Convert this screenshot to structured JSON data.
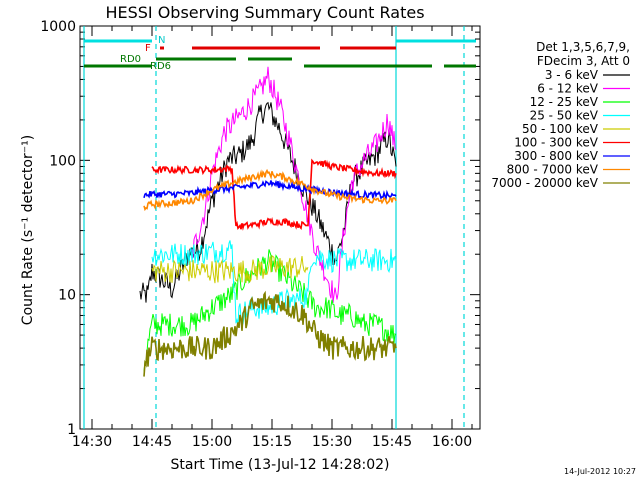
{
  "chart_data": {
    "type": "line",
    "title": "HESSI Observing Summary Count Rates",
    "xlabel": "Start Time (13-Jul-12 14:28:02)",
    "ylabel": "Count Rate (s⁻¹ detector⁻¹)",
    "footer_date": "14-Jul-2012 10:27",
    "y_scale": "log",
    "ylim": [
      1,
      1000
    ],
    "xlim_minutes": [
      14.45,
      16.12
    ],
    "xlim": [
      "14:27",
      "16:07"
    ],
    "x_ticks": [
      "14:30",
      "14:45",
      "15:00",
      "15:15",
      "15:30",
      "15:45",
      "16:00"
    ],
    "y_ticks": [
      "1",
      "10",
      "100",
      "1000"
    ],
    "legend_header": [
      "Det 1,3,5,6,7,9,",
      "FDecim 3, Att 0"
    ],
    "legend_position": "right-outside",
    "vertical_lines_cyan": [
      "14:28",
      "14:46",
      "15:46",
      "16:03"
    ],
    "flags": {
      "N_label": "N",
      "F_label": "F",
      "RD0_label": "RD0",
      "RD6_label": "RD6",
      "N_segments": [
        [
          "14:28",
          "14:45"
        ],
        [
          "15:46",
          "16:06"
        ]
      ],
      "F_segments": [
        [
          "14:47",
          "14:48"
        ],
        [
          "14:55",
          "15:27"
        ],
        [
          "15:32",
          "15:46"
        ]
      ],
      "RD0_segments": [
        [
          "14:28",
          "14:45"
        ],
        [
          "15:23",
          "15:55"
        ],
        [
          "15:58",
          "16:06"
        ]
      ],
      "RD6_segments": [
        [
          "14:46",
          "15:06"
        ],
        [
          "15:09",
          "15:20"
        ]
      ]
    },
    "series": [
      {
        "name": "3 - 6 keV",
        "color": "#000000",
        "keypoints": [
          [
            "14:42",
            10
          ],
          [
            "14:44",
            10
          ],
          [
            "14:45",
            15
          ],
          [
            "14:50",
            11
          ],
          [
            "14:54",
            20
          ],
          [
            "14:57",
            22
          ],
          [
            "15:00",
            50
          ],
          [
            "15:04",
            100
          ],
          [
            "15:07",
            110
          ],
          [
            "15:10",
            140
          ],
          [
            "15:12",
            220
          ],
          [
            "15:14",
            250
          ],
          [
            "15:17",
            170
          ],
          [
            "15:20",
            100
          ],
          [
            "15:23",
            60
          ],
          [
            "15:26",
            40
          ],
          [
            "15:29",
            25
          ],
          [
            "15:31",
            18
          ],
          [
            "15:33",
            30
          ],
          [
            "15:35",
            70
          ],
          [
            "15:38",
            90
          ],
          [
            "15:41",
            110
          ],
          [
            "15:44",
            150
          ],
          [
            "15:46",
            90
          ]
        ]
      },
      {
        "name": "6 - 12 keV",
        "color": "#ff00ff",
        "keypoints": [
          [
            "14:55",
            20
          ],
          [
            "14:58",
            40
          ],
          [
            "15:00",
            80
          ],
          [
            "15:03",
            160
          ],
          [
            "15:06",
            200
          ],
          [
            "15:09",
            250
          ],
          [
            "15:12",
            330
          ],
          [
            "15:14",
            420
          ],
          [
            "15:17",
            250
          ],
          [
            "15:20",
            120
          ],
          [
            "15:23",
            50
          ],
          [
            "15:26",
            22
          ],
          [
            "15:29",
            13
          ],
          [
            "15:31",
            9
          ],
          [
            "15:33",
            30
          ],
          [
            "15:35",
            70
          ],
          [
            "15:38",
            100
          ],
          [
            "15:41",
            130
          ],
          [
            "15:44",
            200
          ],
          [
            "15:46",
            120
          ]
        ]
      },
      {
        "name": "12 - 25 keV",
        "color": "#00ff00",
        "keypoints": [
          [
            "14:43",
            3
          ],
          [
            "14:45",
            6
          ],
          [
            "14:50",
            6
          ],
          [
            "14:55",
            6
          ],
          [
            "15:00",
            8
          ],
          [
            "15:05",
            10
          ],
          [
            "15:08",
            13
          ],
          [
            "15:12",
            16
          ],
          [
            "15:14",
            18
          ],
          [
            "15:17",
            15
          ],
          [
            "15:20",
            12
          ],
          [
            "15:23",
            10
          ],
          [
            "15:26",
            8
          ],
          [
            "15:29",
            8
          ],
          [
            "15:32",
            7
          ],
          [
            "15:35",
            7
          ],
          [
            "15:38",
            6
          ],
          [
            "15:41",
            6
          ],
          [
            "15:46",
            5
          ]
        ]
      },
      {
        "name": "25 - 50 keV",
        "color": "#00ffff",
        "keypoints": [
          [
            "14:45",
            20
          ],
          [
            "14:50",
            20
          ],
          [
            "14:55",
            20
          ],
          [
            "15:00",
            21
          ],
          [
            "15:05",
            22
          ],
          [
            "15:06",
            7
          ],
          [
            "15:10",
            8
          ],
          [
            "15:14",
            8
          ],
          [
            "15:18",
            9
          ],
          [
            "15:21",
            9
          ],
          [
            "15:24",
            10
          ],
          [
            "15:25",
            20
          ],
          [
            "15:30",
            18
          ],
          [
            "15:35",
            18
          ],
          [
            "15:41",
            18
          ],
          [
            "15:46",
            18
          ]
        ]
      },
      {
        "name": "50 - 100 keV",
        "color": "#cccc00",
        "keypoints": [
          [
            "14:45",
            15
          ],
          [
            "14:50",
            15
          ],
          [
            "14:55",
            15
          ],
          [
            "15:00",
            15
          ],
          [
            "15:05",
            15
          ],
          [
            "15:06",
            15
          ],
          [
            "15:10",
            15
          ],
          [
            "15:14",
            16
          ],
          [
            "15:18",
            16
          ],
          [
            "15:22",
            16
          ],
          [
            "15:24",
            16
          ]
        ]
      },
      {
        "name": "100 - 300 keV",
        "color": "#ff0000",
        "keypoints": [
          [
            "14:45",
            85
          ],
          [
            "14:50",
            85
          ],
          [
            "14:55",
            85
          ],
          [
            "15:00",
            85
          ],
          [
            "15:05",
            87
          ],
          [
            "15:06",
            32
          ],
          [
            "15:10",
            33
          ],
          [
            "15:14",
            35
          ],
          [
            "15:18",
            35
          ],
          [
            "15:22",
            33
          ],
          [
            "15:24",
            33
          ],
          [
            "15:25",
            100
          ],
          [
            "15:30",
            90
          ],
          [
            "15:35",
            85
          ],
          [
            "15:41",
            80
          ],
          [
            "15:46",
            80
          ]
        ]
      },
      {
        "name": "300 - 800 keV",
        "color": "#0000ff",
        "keypoints": [
          [
            "14:43",
            55
          ],
          [
            "14:45",
            56
          ],
          [
            "14:50",
            56
          ],
          [
            "14:55",
            57
          ],
          [
            "15:00",
            60
          ],
          [
            "15:05",
            62
          ],
          [
            "15:10",
            65
          ],
          [
            "15:14",
            68
          ],
          [
            "15:18",
            65
          ],
          [
            "15:22",
            62
          ],
          [
            "15:26",
            60
          ],
          [
            "15:30",
            58
          ],
          [
            "15:35",
            56
          ],
          [
            "15:41",
            55
          ],
          [
            "15:46",
            54
          ]
        ]
      },
      {
        "name": "800 - 7000 keV",
        "color": "#ff8800",
        "keypoints": [
          [
            "14:43",
            45
          ],
          [
            "14:45",
            47
          ],
          [
            "14:50",
            48
          ],
          [
            "14:55",
            50
          ],
          [
            "15:00",
            60
          ],
          [
            "15:05",
            68
          ],
          [
            "15:10",
            75
          ],
          [
            "15:14",
            80
          ],
          [
            "15:18",
            75
          ],
          [
            "15:22",
            68
          ],
          [
            "15:26",
            60
          ],
          [
            "15:30",
            55
          ],
          [
            "15:35",
            52
          ],
          [
            "15:41",
            50
          ],
          [
            "15:46",
            50
          ]
        ]
      },
      {
        "name": "7000 - 20000 keV",
        "color": "#808000",
        "keypoints": [
          [
            "14:43",
            3
          ],
          [
            "14:45",
            4
          ],
          [
            "14:50",
            4
          ],
          [
            "14:55",
            4
          ],
          [
            "15:00",
            4
          ],
          [
            "15:04",
            5
          ],
          [
            "15:07",
            6
          ],
          [
            "15:10",
            8
          ],
          [
            "15:14",
            9
          ],
          [
            "15:17",
            9
          ],
          [
            "15:20",
            8
          ],
          [
            "15:23",
            7
          ],
          [
            "15:26",
            5
          ],
          [
            "15:30",
            4
          ],
          [
            "15:35",
            4
          ],
          [
            "15:41",
            4
          ],
          [
            "15:46",
            4
          ]
        ]
      }
    ]
  }
}
